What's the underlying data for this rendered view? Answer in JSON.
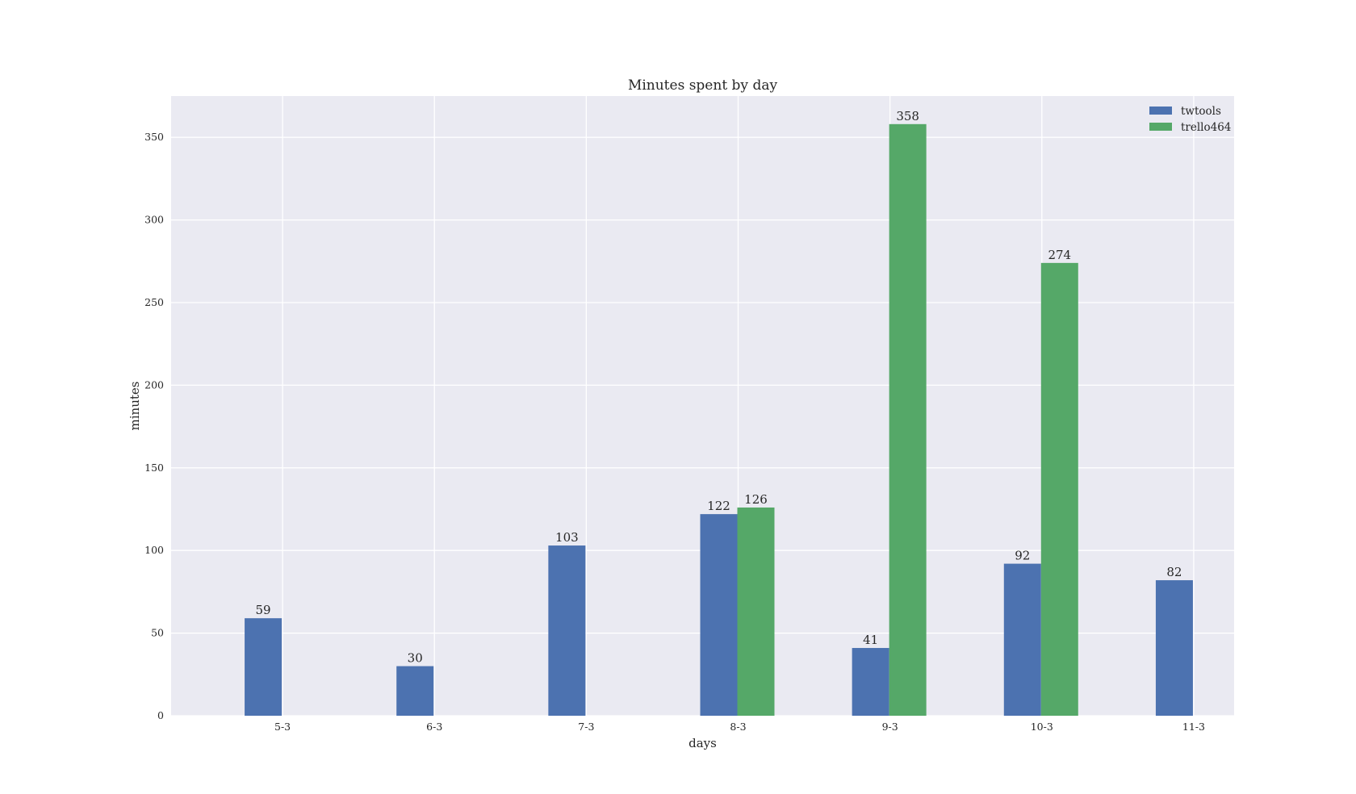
{
  "chart_data": {
    "type": "bar",
    "title": "Minutes spent by day",
    "xlabel": "days",
    "ylabel": "minutes",
    "categories": [
      "5-3",
      "6-3",
      "7-3",
      "8-3",
      "9-3",
      "10-3",
      "11-3"
    ],
    "series": [
      {
        "name": "twtools",
        "color": "#4c72b0",
        "values": [
          59,
          30,
          103,
          122,
          41,
          92,
          82
        ]
      },
      {
        "name": "trello464",
        "color": "#55a868",
        "values": [
          null,
          null,
          null,
          126,
          358,
          274,
          null
        ]
      }
    ],
    "ylim": [
      0,
      375
    ],
    "yticks": [
      0,
      50,
      100,
      150,
      200,
      250,
      300,
      350
    ],
    "grid": true,
    "legend": "top-right",
    "background": "#eaeaf2"
  }
}
